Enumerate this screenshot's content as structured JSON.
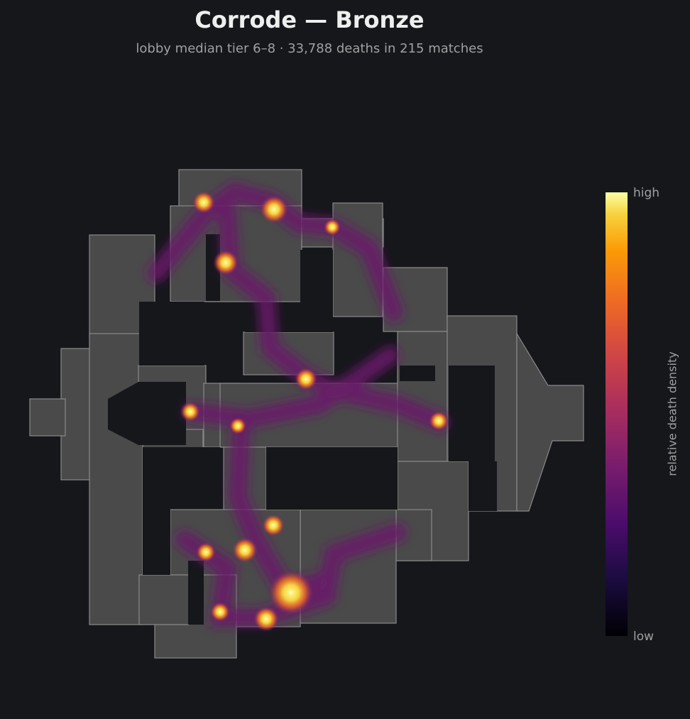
{
  "header": {
    "title": "Corrode — Bronze",
    "subtitle": "lobby median tier 6–8  ·  33,788 deaths in 215 matches"
  },
  "colorbar": {
    "label": "relative death density",
    "high_label": "high",
    "low_label": "low"
  }
}
